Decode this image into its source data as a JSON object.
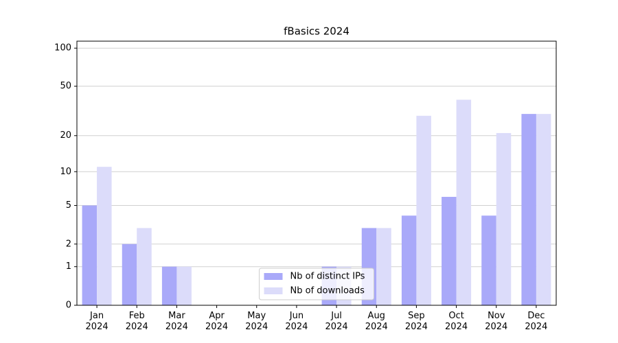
{
  "chart_data": {
    "type": "bar",
    "title": "fBasics 2024",
    "scale": "log1p",
    "categories": [
      "Jan\n2024",
      "Feb\n2024",
      "Mar\n2024",
      "Apr\n2024",
      "May\n2024",
      "Jun\n2024",
      "Jul\n2024",
      "Aug\n2024",
      "Sep\n2024",
      "Oct\n2024",
      "Nov\n2024",
      "Dec\n2024"
    ],
    "series": [
      {
        "name": "Nb of distinct IPs",
        "color": "#a9a9f9",
        "values": [
          5,
          2,
          1,
          0,
          0,
          0,
          1,
          3,
          4,
          6,
          4,
          30
        ]
      },
      {
        "name": "Nb of downloads",
        "color": "#dcdcfa",
        "values": [
          11,
          3,
          1,
          0,
          0,
          0,
          1,
          3,
          29,
          39,
          21,
          30
        ]
      }
    ],
    "ylim": [
      0,
      113.5
    ],
    "yticks": [
      0,
      1,
      2,
      5,
      10,
      20,
      50,
      100
    ],
    "grid": true,
    "legend": "lower center"
  }
}
